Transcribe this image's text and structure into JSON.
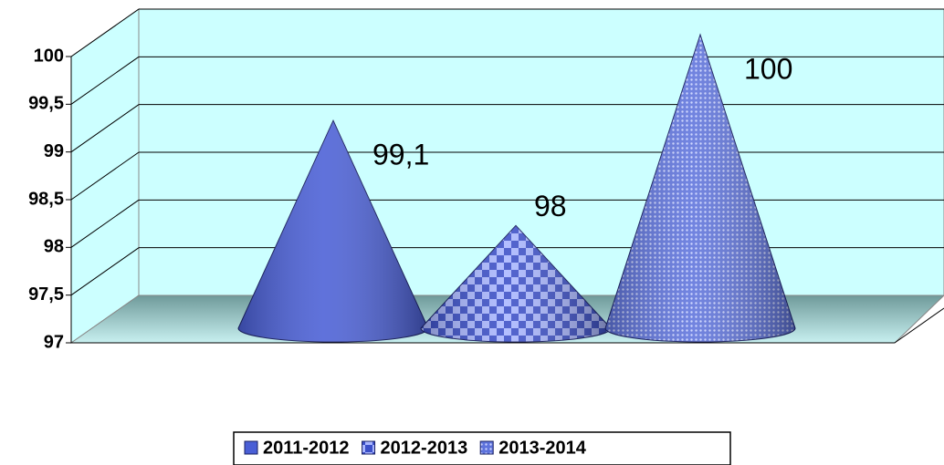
{
  "chart_data": {
    "type": "cone",
    "series": [
      {
        "name": "2011-2012",
        "color": "#4a5fd6",
        "values": [
          99.1
        ],
        "value_labels": [
          "99,1"
        ]
      },
      {
        "name": "2012-2013",
        "color": "#5a70e6",
        "values": [
          98
        ],
        "value_labels": [
          "98"
        ]
      },
      {
        "name": "2013-2014",
        "color": "#6f84e8",
        "values": [
          100
        ],
        "value_labels": [
          "100"
        ]
      }
    ],
    "ylim": [
      97,
      100
    ],
    "yticks": [
      97,
      {
        "value": 97.5,
        "label": "97,5"
      },
      98,
      {
        "value": 98.5,
        "label": "98,5"
      },
      99,
      {
        "value": 99.5,
        "label": "99,5"
      },
      100
    ],
    "grid": true,
    "legend": "bottom"
  }
}
